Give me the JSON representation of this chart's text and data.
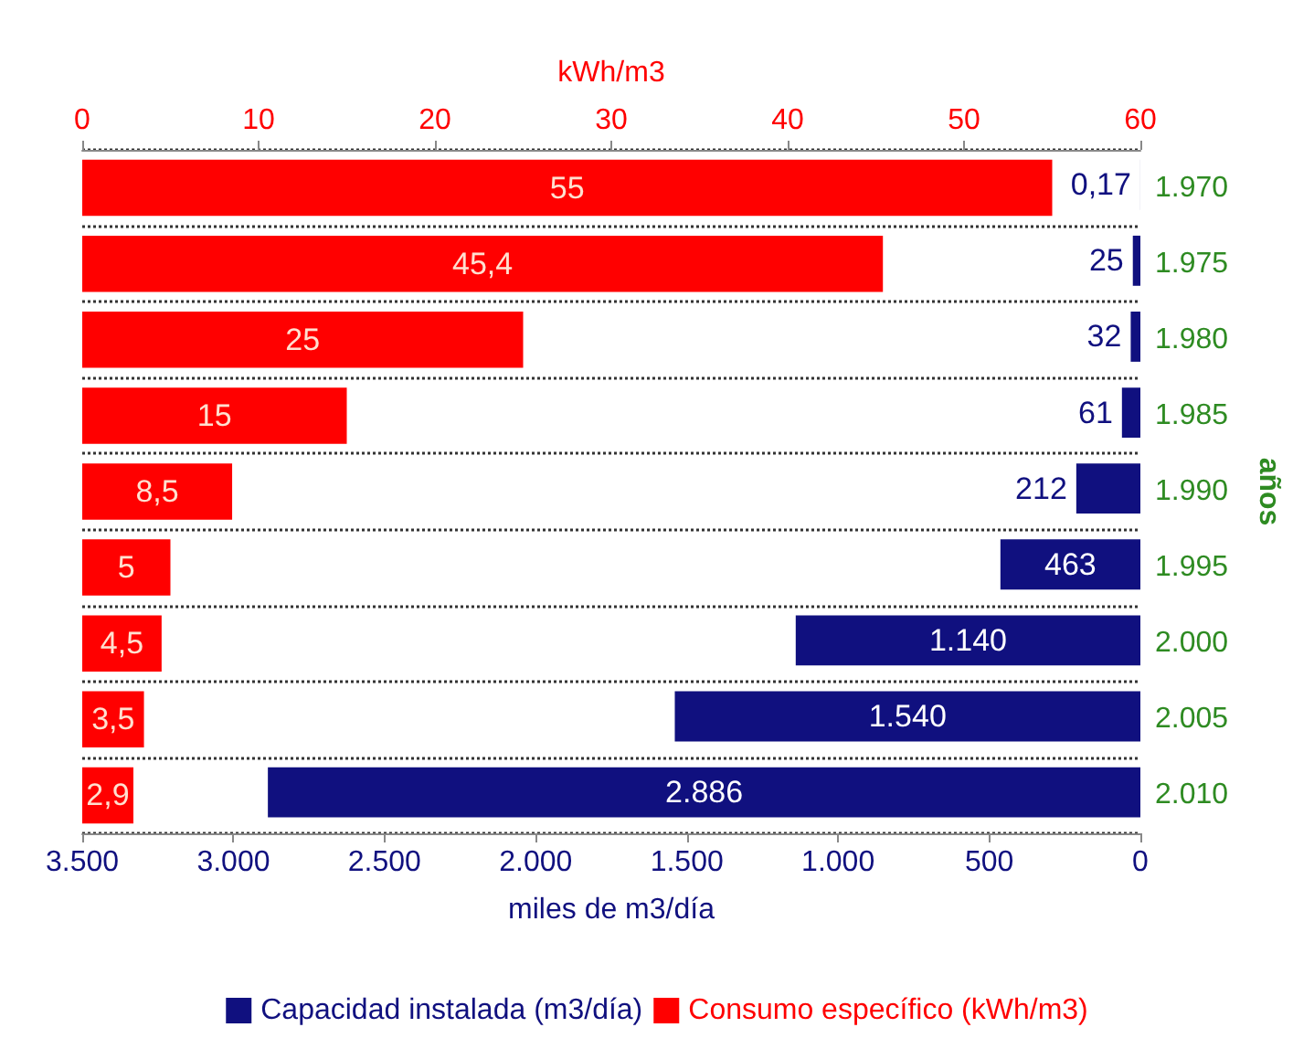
{
  "chart_data": {
    "type": "bar",
    "orientation": "horizontal",
    "categories": [
      "1.970",
      "1.975",
      "1.980",
      "1.985",
      "1.990",
      "1.995",
      "2.000",
      "2.005",
      "2.010"
    ],
    "xlabel": "miles de m3/día",
    "x2label": "kWh/m3",
    "ylabel": "años",
    "xlim": [
      3500,
      0
    ],
    "xticks": [
      {
        "value": 3500,
        "label": "3.500"
      },
      {
        "value": 3000,
        "label": "3.000"
      },
      {
        "value": 2500,
        "label": "2.500"
      },
      {
        "value": 2000,
        "label": "2.000"
      },
      {
        "value": 1500,
        "label": "1.500"
      },
      {
        "value": 1000,
        "label": "1.000"
      },
      500,
      0
    ],
    "x2lim": [
      0,
      60
    ],
    "x2ticks": [
      0,
      10,
      20,
      30,
      40,
      50,
      60
    ],
    "series": [
      {
        "name": "Capacidad instalada (m3/día)",
        "color": "#10107f",
        "values": [
          0.17,
          25,
          32,
          61,
          212,
          463,
          1140,
          1540,
          2886
        ],
        "value_labels": [
          "0,17",
          "25",
          "32",
          "61",
          "212",
          "463",
          "1.140",
          "1.540",
          "2.886"
        ]
      },
      {
        "name": "Consumo específico (kWh/m3)",
        "color": "#ff0000",
        "axis": "x2",
        "values": [
          55,
          45.4,
          25,
          15,
          8.5,
          5,
          4.5,
          3.5,
          2.9
        ],
        "value_labels": [
          "55",
          "45,4",
          "25",
          "15",
          "8,5",
          "5",
          "4,5",
          "3,5",
          "2,9"
        ]
      }
    ],
    "grid": "y",
    "legend": "bottom"
  }
}
